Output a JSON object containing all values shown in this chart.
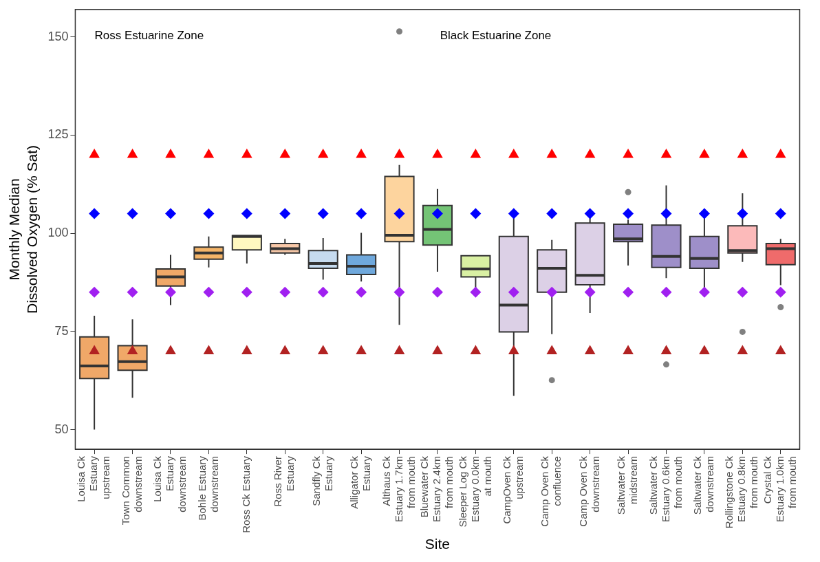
{
  "chart_data": {
    "type": "box",
    "xlabel": "Site",
    "ylabel": "Monthly Median\nDissolved Oxygen (% Sat)",
    "categories": [
      "Louisa Ck\nEstuary\nupstream",
      "Town Common\ndownstream",
      "Louisa Ck\nEstuary\ndownstream",
      "Bohle Estuary\ndownstream",
      "Ross Ck Estuary",
      "Ross River\nEstuary",
      "Sandfly Ck\nEstuary",
      "Alligator Ck\nEstuary",
      "Althaus Ck\nEstuary 1.7km\nfrom mouth",
      "Bluewater Ck\nEstuary 2.4km\nfrom mouth",
      "Sleeper Log Ck\nEstuary 0.0km\nat mouth",
      "CampOven Ck\nupstream",
      "Camp Oven Ck\nconfluence",
      "Camp Oven Ck\ndownstream",
      "Saltwater Ck\nmidstream",
      "Saltwater Ck\nEstuary 0.6km\nfrom mouth",
      "Saltwater Ck\ndownstream",
      "Rollingstone Ck\nEstuary 0.8km\nfrom mouth",
      "Crystal Ck\nEstuary 1.0km\nfrom mouth"
    ],
    "ylim": [
      45,
      157
    ],
    "yticks": [
      50,
      75,
      100,
      125,
      150
    ],
    "grid": false,
    "legend": false,
    "annotations": [
      "Ross Estuarine Zone",
      "Black Estuarine Zone"
    ],
    "series": [
      {
        "colors": [
          "#f0a868",
          "#f0a868",
          "#f0a868",
          "#f4b468",
          "#fff8c0",
          "#f8c8a8",
          "#c6dbef",
          "#6fa8dc",
          "#fdd49e",
          "#74c476",
          "#d9f0a3",
          "#dcd0e6",
          "#dcd0e6",
          "#dcd0e6",
          "#9e8fc9",
          "#9e8fc9",
          "#9e8fc9",
          "#fcbaba",
          "#ef6b6b"
        ],
        "boxes": [
          {
            "low": 50,
            "q1": 63,
            "median": 66.2,
            "q3": 73.6,
            "high": 79
          },
          {
            "low": 58.1,
            "q1": 65.1,
            "median": 67.3,
            "q3": 71.4,
            "high": 78.1
          },
          {
            "low": 81.7,
            "q1": 86.6,
            "median": 88.9,
            "q3": 90.9,
            "high": 94.5
          },
          {
            "low": 91.3,
            "q1": 93.4,
            "median": 95,
            "q3": 96.5,
            "high": 99.2
          },
          {
            "low": 92.3,
            "q1": 95.8,
            "median": 99.2,
            "q3": 99.4,
            "high": 99.4
          },
          {
            "low": 94.5,
            "q1": 95,
            "median": 96.1,
            "q3": 97.4,
            "high": 98.6
          },
          {
            "low": 88.2,
            "q1": 91.1,
            "median": 92.3,
            "q3": 95.6,
            "high": 98.8
          },
          {
            "low": 87.7,
            "q1": 89.5,
            "median": 91.6,
            "q3": 94.5,
            "high": 100.1
          },
          {
            "low": 76.7,
            "q1": 97.9,
            "median": 99.5,
            "q3": 114.5,
            "high": 117.4,
            "outliers": [
              151.4
            ]
          },
          {
            "low": 90.2,
            "q1": 97,
            "median": 101,
            "q3": 107.1,
            "high": 111.3
          },
          {
            "low": 85.3,
            "q1": 88.9,
            "median": 90.9,
            "q3": 94.3,
            "high": 94.3
          },
          {
            "low": 58.6,
            "q1": 74.9,
            "median": 81.7,
            "q3": 99.2,
            "high": 105.1
          },
          {
            "low": 74.3,
            "q1": 85,
            "median": 91.1,
            "q3": 95.8,
            "high": 98.3,
            "outliers": [
              62.6
            ]
          },
          {
            "low": 79.7,
            "q1": 86.9,
            "median": 89.3,
            "q3": 102.6,
            "high": 104.4
          },
          {
            "low": 91.8,
            "q1": 97.9,
            "median": 98.6,
            "q3": 102.3,
            "high": 103.5,
            "outliers": [
              110.5
            ]
          },
          {
            "low": 88.6,
            "q1": 91.3,
            "median": 94.1,
            "q3": 102.1,
            "high": 112.2,
            "outliers": [
              66.6
            ]
          },
          {
            "low": 85.3,
            "q1": 91.1,
            "median": 93.6,
            "q3": 99.2,
            "high": 103.9
          },
          {
            "low": 92.7,
            "q1": 95,
            "median": 95.6,
            "q3": 101.9,
            "high": 110.2,
            "outliers": [
              74.9
            ]
          },
          {
            "low": 86.8,
            "q1": 92,
            "median": 96.1,
            "q3": 97.4,
            "high": 98.6,
            "outliers": [
              81.2
            ]
          }
        ]
      },
      {
        "type": "scatter",
        "color": "#ff0000",
        "marker": "triangle",
        "x": [
          "Louisa Ck\nEstuary\nupstream",
          "Town Common\ndownstream",
          "Louisa Ck\nEstuary\ndownstream",
          "Bohle Estuary\ndownstream",
          "Ross Ck Estuary",
          "Ross River\nEstuary",
          "Sandfly Ck\nEstuary",
          "Alligator Ck\nEstuary",
          "Althaus Ck\nEstuary 1.7km\nfrom mouth",
          "Bluewater Ck\nEstuary 2.4km\nfrom mouth",
          "Sleeper Log Ck\nEstuary 0.0km\nat mouth",
          "CampOven Ck\nupstream",
          "Camp Oven Ck\nconfluence",
          "Camp Oven Ck\ndownstream",
          "Saltwater Ck\nmidstream",
          "Saltwater Ck\nEstuary 0.6km\nfrom mouth",
          "Saltwater Ck\ndownstream",
          "Rollingstone Ck\nEstuary 0.8km\nfrom mouth",
          "Crystal Ck\nEstuary 1.0km\nfrom mouth"
        ],
        "values": [
          120,
          120,
          120,
          120,
          120,
          120,
          120,
          120,
          120,
          120,
          120,
          120,
          120,
          120,
          120,
          120,
          120,
          120,
          120
        ]
      },
      {
        "type": "scatter",
        "color": "#0000ff",
        "marker": "diamond",
        "x": [
          "Louisa Ck\nEstuary\nupstream",
          "Town Common\ndownstream",
          "Louisa Ck\nEstuary\ndownstream",
          "Bohle Estuary\ndownstream",
          "Ross Ck Estuary",
          "Ross River\nEstuary",
          "Sandfly Ck\nEstuary",
          "Alligator Ck\nEstuary",
          "Althaus Ck\nEstuary 1.7km\nfrom mouth",
          "Bluewater Ck\nEstuary 2.4km\nfrom mouth",
          "Sleeper Log Ck\nEstuary 0.0km\nat mouth",
          "CampOven Ck\nupstream",
          "Camp Oven Ck\nconfluence",
          "Camp Oven Ck\ndownstream",
          "Saltwater Ck\nmidstream",
          "Saltwater Ck\nEstuary 0.6km\nfrom mouth",
          "Saltwater Ck\ndownstream",
          "Rollingstone Ck\nEstuary 0.8km\nfrom mouth",
          "Crystal Ck\nEstuary 1.0km\nfrom mouth"
        ],
        "values": [
          105,
          105,
          105,
          105,
          105,
          105,
          105,
          105,
          105,
          105,
          105,
          105,
          105,
          105,
          105,
          105,
          105,
          105,
          105
        ]
      },
      {
        "type": "scatter",
        "color": "#a020f0",
        "marker": "diamond",
        "x": [
          "Louisa Ck\nEstuary\nupstream",
          "Town Common\ndownstream",
          "Louisa Ck\nEstuary\ndownstream",
          "Bohle Estuary\ndownstream",
          "Ross Ck Estuary",
          "Ross River\nEstuary",
          "Sandfly Ck\nEstuary",
          "Alligator Ck\nEstuary",
          "Althaus Ck\nEstuary 1.7km\nfrom mouth",
          "Bluewater Ck\nEstuary 2.4km\nfrom mouth",
          "Sleeper Log Ck\nEstuary 0.0km\nat mouth",
          "CampOven Ck\nupstream",
          "Camp Oven Ck\nconfluence",
          "Camp Oven Ck\ndownstream",
          "Saltwater Ck\nmidstream",
          "Saltwater Ck\nEstuary 0.6km\nfrom mouth",
          "Saltwater Ck\ndownstream",
          "Rollingstone Ck\nEstuary 0.8km\nfrom mouth",
          "Crystal Ck\nEstuary 1.0km\nfrom mouth"
        ],
        "values": [
          85,
          85,
          85,
          85,
          85,
          85,
          85,
          85,
          85,
          85,
          85,
          85,
          85,
          85,
          85,
          85,
          85,
          85,
          85
        ]
      },
      {
        "type": "scatter",
        "color": "#b22222",
        "marker": "triangle",
        "x": [
          "Louisa Ck\nEstuary\nupstream",
          "Town Common\ndownstream",
          "Louisa Ck\nEstuary\ndownstream",
          "Bohle Estuary\ndownstream",
          "Ross Ck Estuary",
          "Ross River\nEstuary",
          "Sandfly Ck\nEstuary",
          "Alligator Ck\nEstuary",
          "Althaus Ck\nEstuary 1.7km\nfrom mouth",
          "Bluewater Ck\nEstuary 2.4km\nfrom mouth",
          "Sleeper Log Ck\nEstuary 0.0km\nat mouth",
          "CampOven Ck\nupstream",
          "Camp Oven Ck\nconfluence",
          "Camp Oven Ck\ndownstream",
          "Saltwater Ck\nmidstream",
          "Saltwater Ck\nEstuary 0.6km\nfrom mouth",
          "Saltwater Ck\ndownstream",
          "Rollingstone Ck\nEstuary 0.8km\nfrom mouth",
          "Crystal Ck\nEstuary 1.0km\nfrom mouth"
        ],
        "values": [
          70,
          70,
          70,
          70,
          70,
          70,
          70,
          70,
          70,
          70,
          70,
          70,
          70,
          70,
          70,
          70,
          70,
          70,
          70
        ]
      }
    ]
  }
}
